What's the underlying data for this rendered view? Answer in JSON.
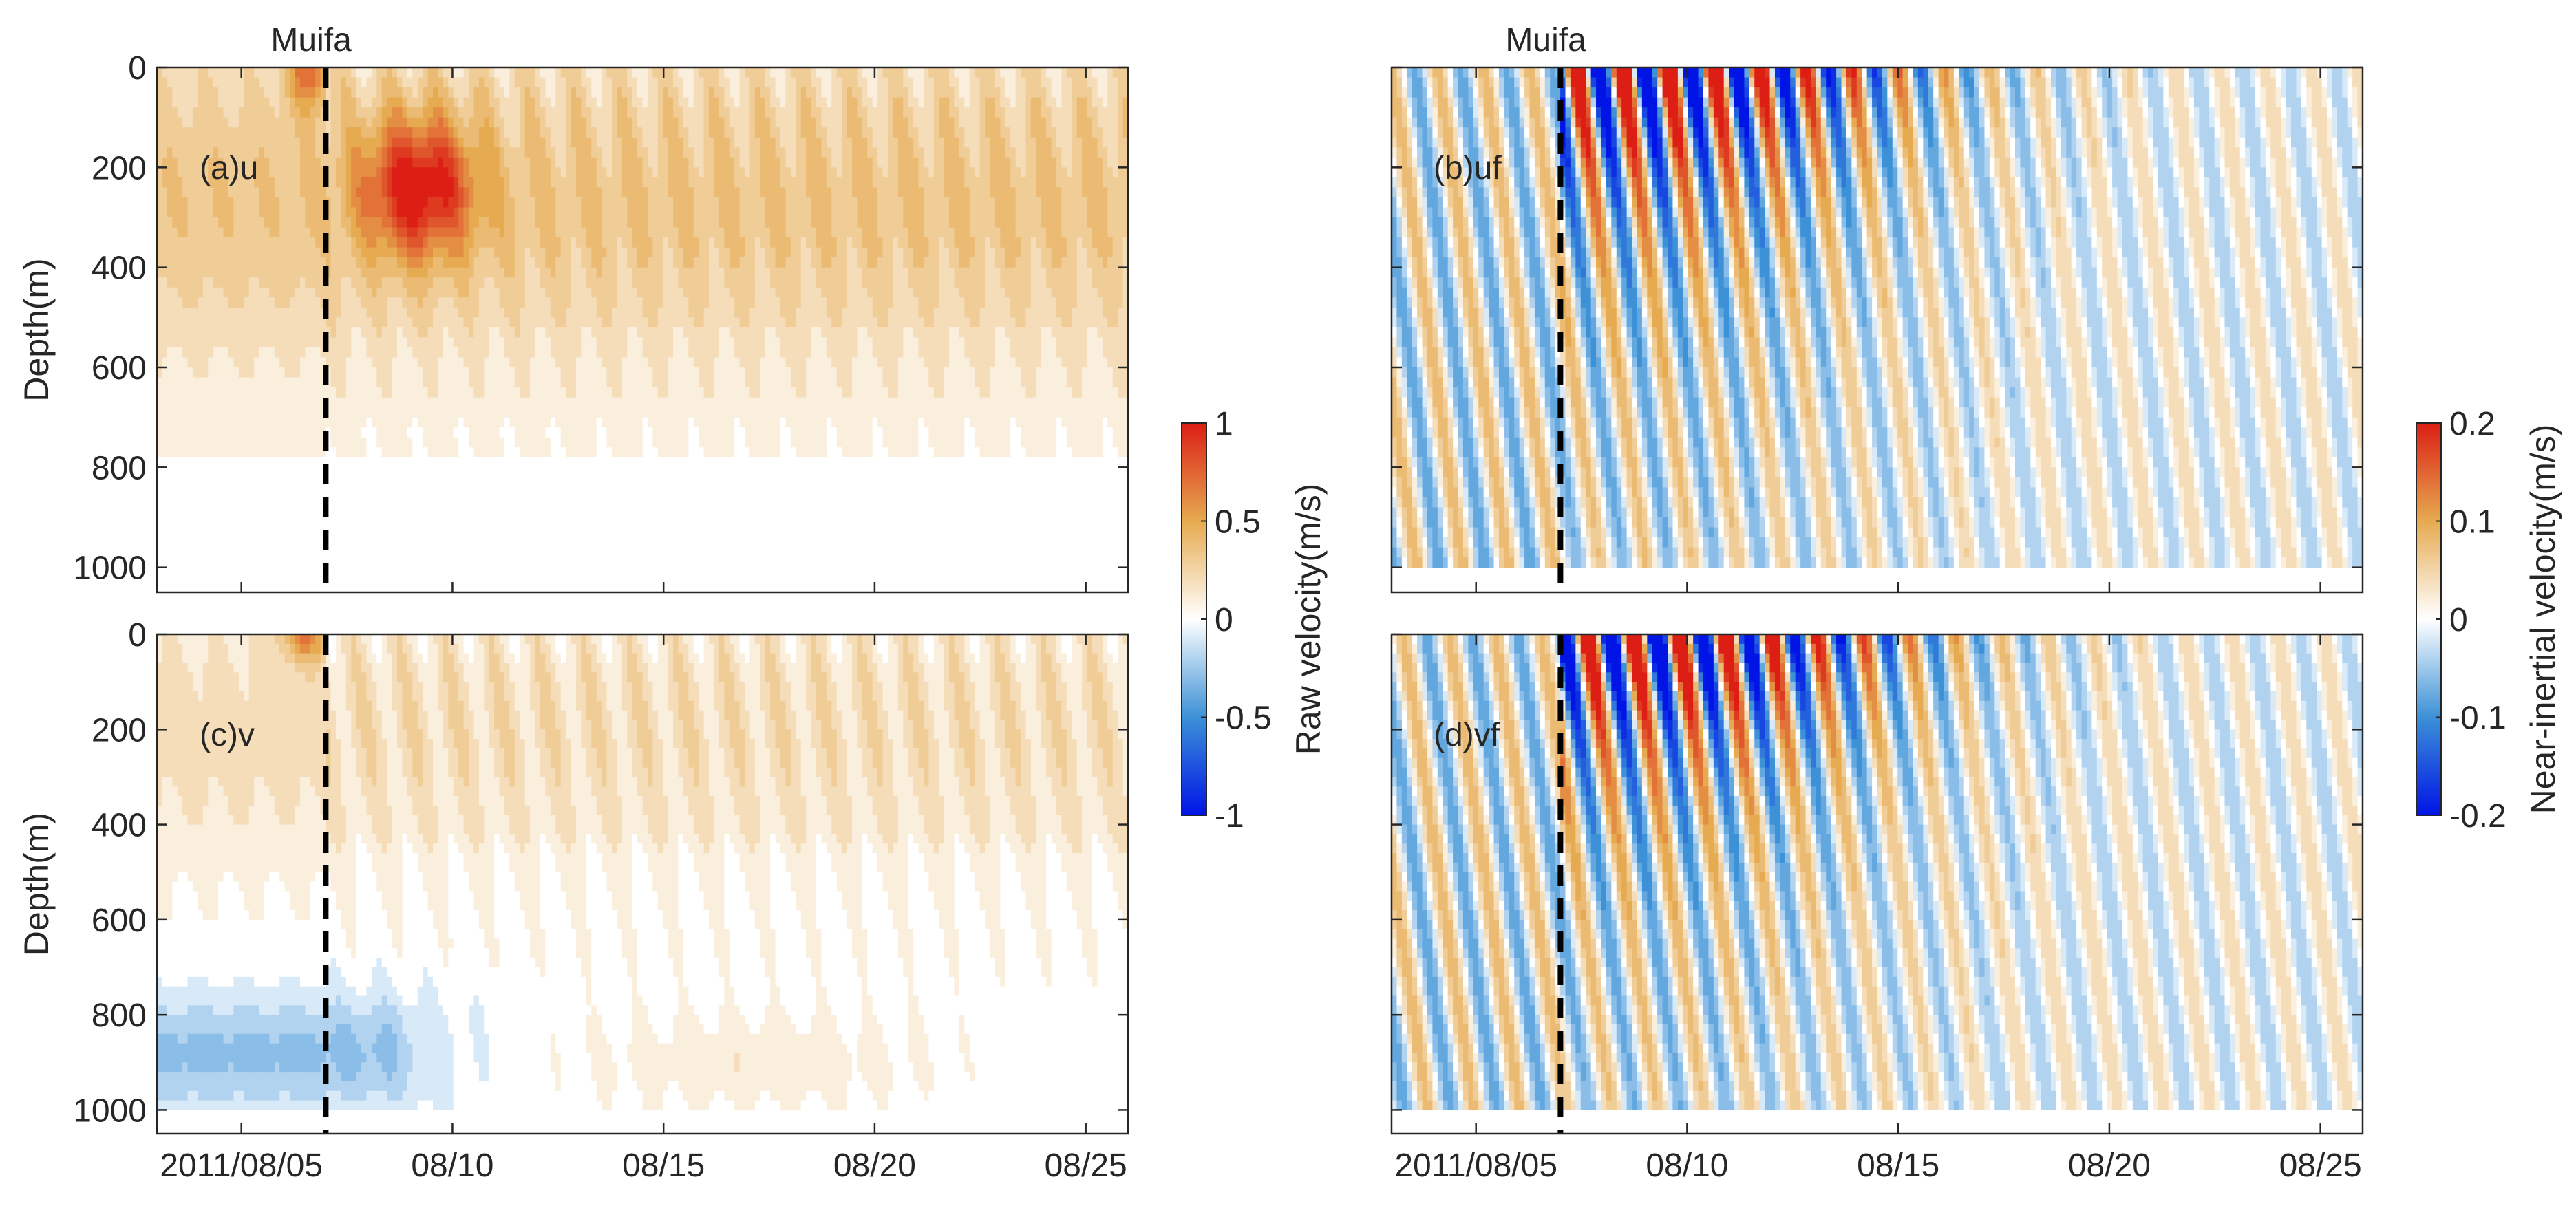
{
  "figure": {
    "event_label": "Muifa",
    "event_date": "2011/08/07",
    "x_start": "2011/08/03",
    "x_end": "2011/08/26",
    "xtick_dates": [
      "2011/08/05",
      "2011/08/10",
      "2011/08/15",
      "2011/08/20",
      "2011/08/25"
    ],
    "xtick_labels": [
      "2011/08/05",
      "08/10",
      "08/15",
      "08/20",
      "08/25"
    ],
    "ylabel": "Depth(m)",
    "ylim": [
      0,
      1050
    ],
    "yticks": [
      0,
      200,
      400,
      600,
      800,
      1000
    ],
    "ytick_labels": [
      "0",
      "200",
      "400",
      "600",
      "800",
      "1000"
    ]
  },
  "colorbars": [
    {
      "label": "Raw velocity(m/s)",
      "range": [
        -1,
        1
      ],
      "ticks": [
        1,
        0.5,
        0,
        -0.5,
        -1
      ],
      "tick_labels": [
        "1",
        "0.5",
        "0",
        "-0.5",
        "-1"
      ]
    },
    {
      "label": "Near-inertial velocity(m/s)",
      "range": [
        -0.2,
        0.2
      ],
      "ticks": [
        0.2,
        0.1,
        0,
        -0.1,
        -0.2
      ],
      "tick_labels": [
        "0.2",
        "0.1",
        "0",
        "-0.1",
        "-0.2"
      ]
    }
  ],
  "colors": {
    "max": "#dc1e14",
    "high": "#e6aa50",
    "zero": "#ffffff",
    "low": "#3c91d7",
    "min": "#0014e6",
    "axis": "#262626",
    "event_line": "#000000"
  },
  "chart_data": [
    {
      "type": "heatmap",
      "panel": "(a)u",
      "variable": "u",
      "title": "Muifa",
      "xlabel": "",
      "ylabel": "Depth(m)",
      "yticks_shown": true,
      "xticks_shown": false,
      "colorbar": 0,
      "features": "mostly positive (0.1-0.5 m/s) in upper 700 m, strongest ~0.8-1.0 m/s at 100-350 m on 08/07-08/09, near zero to slightly negative below 800 m"
    },
    {
      "type": "heatmap",
      "panel": "(b)uf",
      "variable": "uf",
      "title": "Muifa",
      "xlabel": "",
      "ylabel": "",
      "yticks_shown": false,
      "xticks_shown": false,
      "colorbar": 1,
      "features": "near-inertial oscillations, amplitude up to 0.2 m/s in upper 150 m after 08/07, bands tilting downward with time (downward energy propagation)"
    },
    {
      "type": "heatmap",
      "panel": "(c)v",
      "variable": "v",
      "title": "",
      "xlabel": "",
      "ylabel": "Depth(m)",
      "yticks_shown": true,
      "xticks_shown": true,
      "colorbar": 0,
      "features": "weakly positive (0.1-0.3 m/s) in upper 500 m, weak negative (-0.1 to -0.3 m/s) at 700-950 m before 08/08"
    },
    {
      "type": "heatmap",
      "panel": "(d)vf",
      "variable": "vf",
      "title": "",
      "xlabel": "",
      "ylabel": "",
      "yticks_shown": false,
      "xticks_shown": true,
      "colorbar": 1,
      "features": "near-inertial oscillations in quadrature with uf, amplitude up to 0.2 m/s near surface after 08/07, decaying with depth"
    }
  ]
}
